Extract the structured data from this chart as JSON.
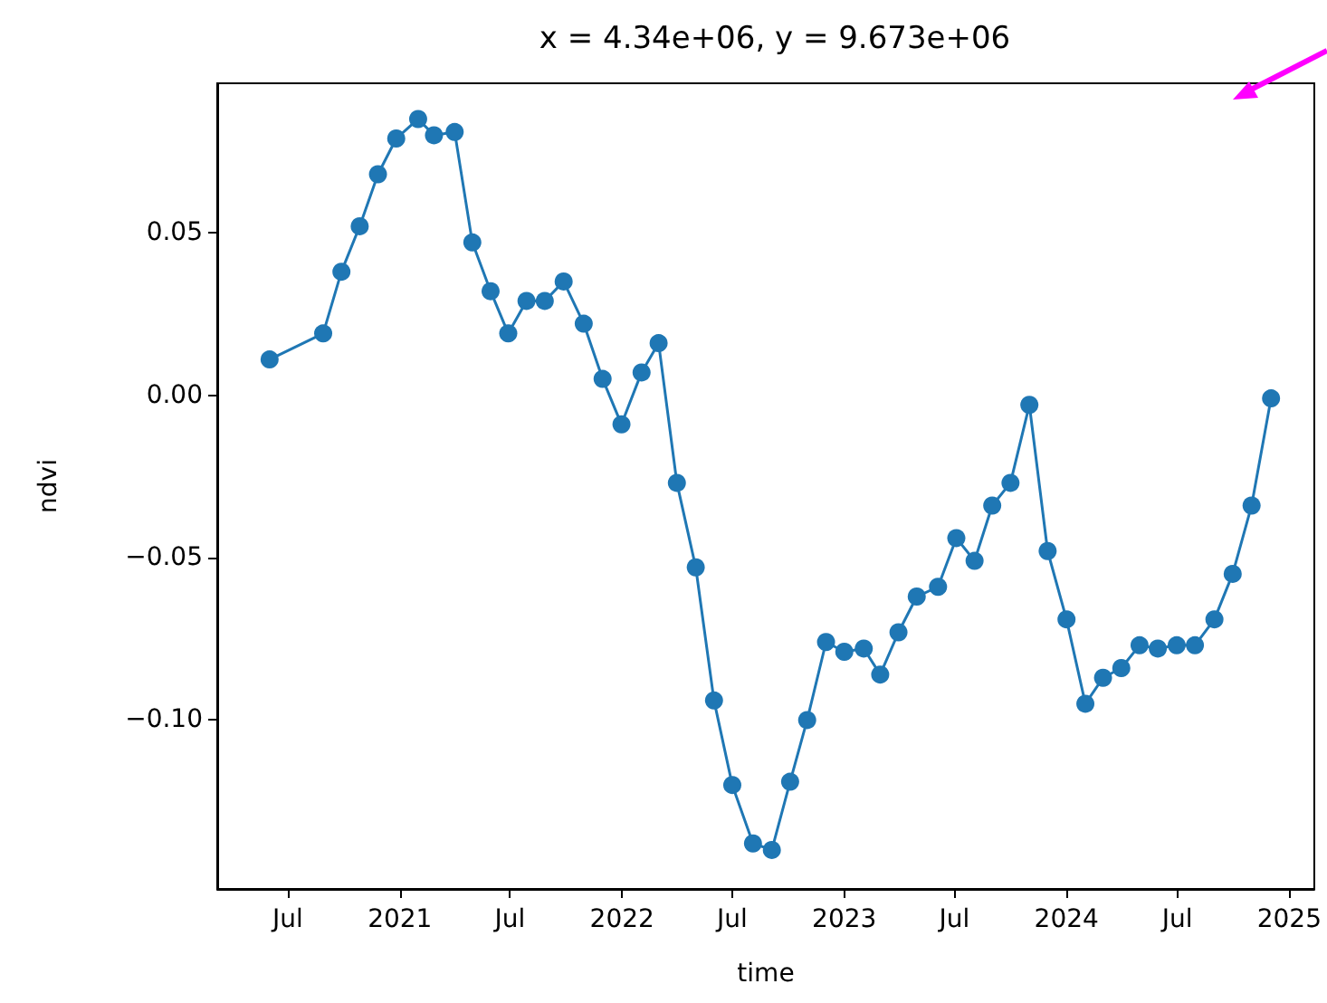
{
  "chart_data": {
    "type": "line",
    "title": "x = 4.34e+06, y = 9.673e+06",
    "xlabel": "time",
    "ylabel": "ndvi",
    "x": [
      "2020-06-01",
      "2020-08-28",
      "2020-09-27",
      "2020-10-27",
      "2020-11-26",
      "2020-12-26",
      "2021-01-31",
      "2021-02-26",
      "2021-04-01",
      "2021-04-30",
      "2021-05-30",
      "2021-06-28",
      "2021-07-28",
      "2021-08-27",
      "2021-09-27",
      "2021-10-30",
      "2021-11-30",
      "2021-12-31",
      "2022-02-02",
      "2022-03-02",
      "2022-04-01",
      "2022-05-02",
      "2022-06-01",
      "2022-07-01",
      "2022-08-04",
      "2022-09-04",
      "2022-10-04",
      "2022-11-01",
      "2022-12-02",
      "2023-01-01",
      "2023-02-02",
      "2023-03-01",
      "2023-03-31",
      "2023-04-30",
      "2023-06-04",
      "2023-07-04",
      "2023-08-03",
      "2023-09-01",
      "2023-10-01",
      "2023-11-01",
      "2023-12-01",
      "2024-01-01",
      "2024-02-01",
      "2024-03-01",
      "2024-03-31",
      "2024-04-30",
      "2024-05-30",
      "2024-06-30",
      "2024-07-30",
      "2024-08-31",
      "2024-09-30",
      "2024-10-31",
      "2024-12-02"
    ],
    "series": [
      {
        "color": "#1f77b4",
        "values": [
          0.011,
          0.019,
          0.038,
          0.052,
          0.068,
          0.079,
          0.085,
          0.08,
          0.081,
          0.047,
          0.032,
          0.019,
          0.029,
          0.029,
          0.035,
          0.022,
          0.005,
          -0.009,
          0.007,
          0.016,
          -0.027,
          -0.053,
          -0.094,
          -0.12,
          -0.138,
          -0.14,
          -0.119,
          -0.1,
          -0.076,
          -0.079,
          -0.078,
          -0.086,
          -0.073,
          -0.062,
          -0.059,
          -0.044,
          -0.051,
          -0.034,
          -0.027,
          -0.003,
          -0.048,
          -0.069,
          -0.095,
          -0.087,
          -0.084,
          -0.077,
          -0.078,
          -0.077,
          -0.077,
          -0.069,
          -0.055,
          -0.034,
          -0.001
        ]
      }
    ],
    "xlim": [
      "2020-03-07",
      "2025-02-11"
    ],
    "xticks": [
      {
        "value": "2020-07-01",
        "label": "Jul"
      },
      {
        "value": "2021-01-01",
        "label": "2021"
      },
      {
        "value": "2021-07-01",
        "label": "Jul"
      },
      {
        "value": "2022-01-01",
        "label": "2022"
      },
      {
        "value": "2022-07-01",
        "label": "Jul"
      },
      {
        "value": "2023-01-01",
        "label": "2023"
      },
      {
        "value": "2023-07-01",
        "label": "Jul"
      },
      {
        "value": "2024-01-01",
        "label": "2024"
      },
      {
        "value": "2024-07-01",
        "label": "Jul"
      },
      {
        "value": "2025-01-01",
        "label": "2025"
      }
    ],
    "ylim": [
      -0.152,
      0.096
    ],
    "yticks": [
      {
        "value": -0.1,
        "label": "−0.10"
      },
      {
        "value": -0.05,
        "label": "−0.05"
      },
      {
        "value": 0,
        "label": "0.00"
      },
      {
        "value": 0.05,
        "label": "0.05"
      }
    ],
    "grid": false,
    "marker": "circle",
    "line_style": "solid"
  }
}
